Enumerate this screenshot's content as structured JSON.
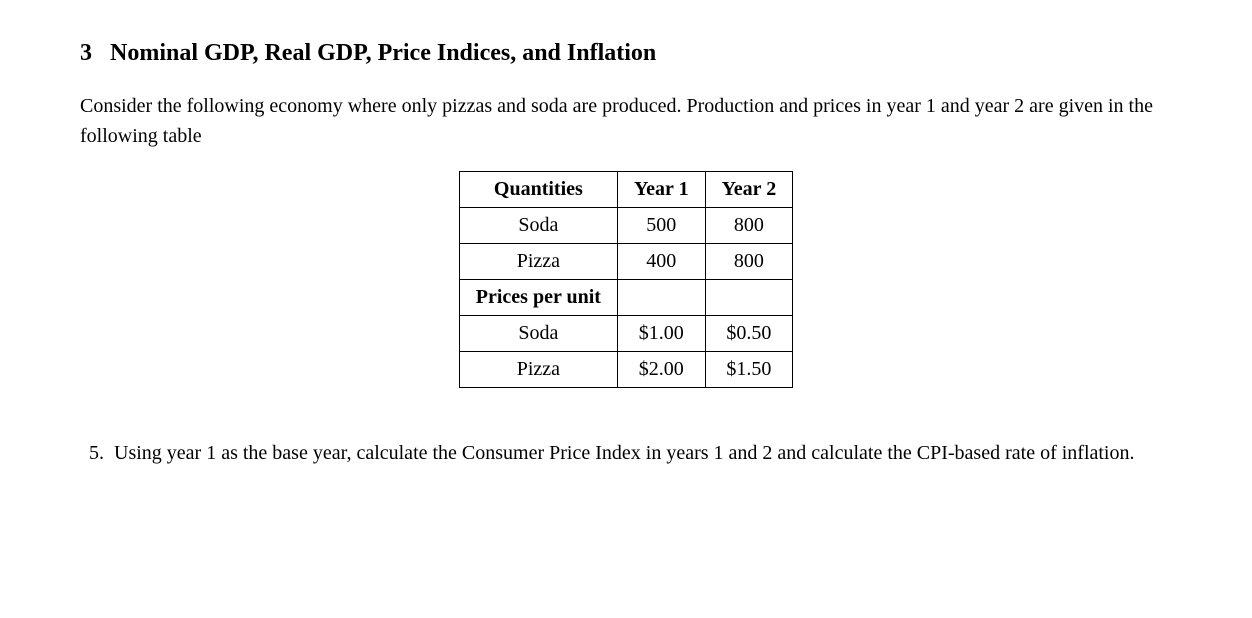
{
  "section": {
    "number": "3",
    "title": "Nominal GDP, Real GDP, Price Indices, and Inflation"
  },
  "intro": "Consider the following economy where only pizzas and soda are produced. Production and prices in year 1 and year 2 are given in the following table",
  "table": {
    "headers": {
      "col0": "Quantities",
      "col1": "Year 1",
      "col2": "Year 2"
    },
    "rows": {
      "r1c0": "Soda",
      "r1c1": "500",
      "r1c2": "800",
      "r2c0": "Pizza",
      "r2c1": "400",
      "r2c2": "800",
      "r3c0": "Prices per unit",
      "r3c1": "",
      "r3c2": "",
      "r4c0": "Soda",
      "r4c1": "$1.00",
      "r4c2": "$0.50",
      "r5c0": "Pizza",
      "r5c1": "$2.00",
      "r5c2": "$1.50"
    }
  },
  "question": {
    "number": "5.",
    "text": "Using year 1 as the base year, calculate the Consumer Price Index in years 1 and 2 and calculate the CPI-based rate of inflation."
  },
  "style": {
    "background": "#ffffff",
    "text_color": "#000000",
    "border_color": "#000000",
    "font_family": "Georgia, 'Times New Roman', serif",
    "heading_fontsize": 24,
    "body_fontsize": 20
  }
}
